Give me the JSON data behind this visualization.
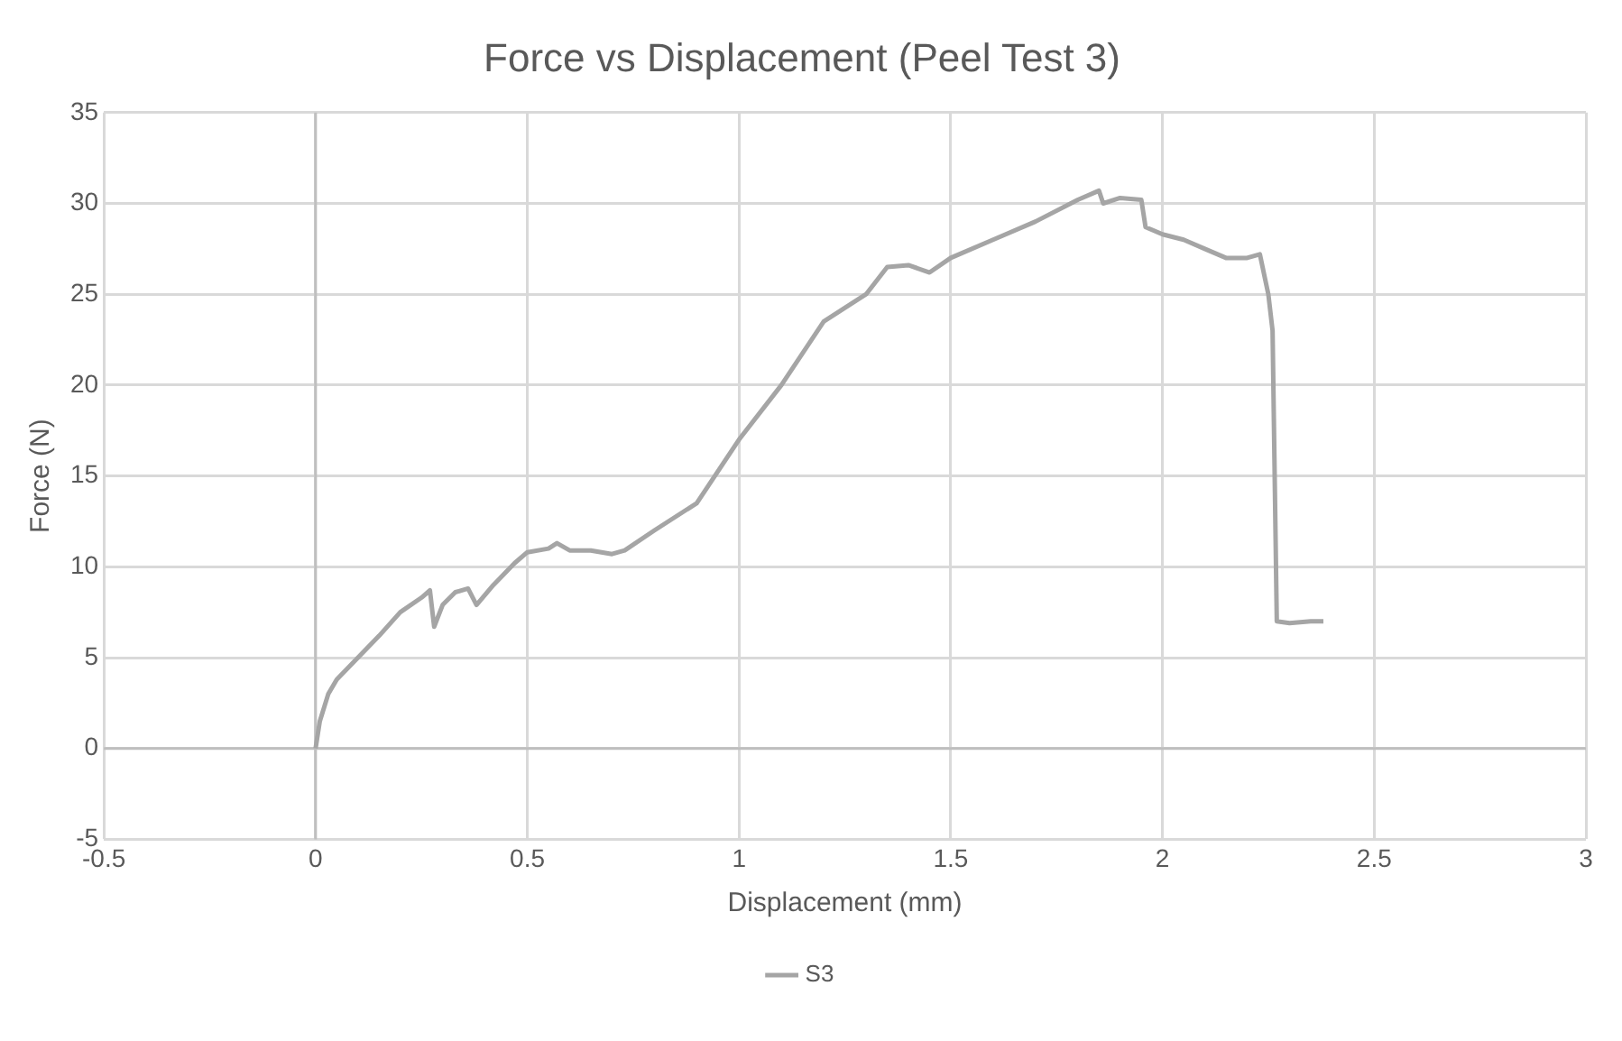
{
  "chart_data": {
    "type": "line",
    "title": "Force vs Displacement (Peel Test 3)",
    "xlabel": "Displacement (mm)",
    "ylabel": "Force (N)",
    "xlim": [
      -0.5,
      3
    ],
    "xticks": [
      -0.5,
      0,
      0.5,
      1,
      1.5,
      2,
      2.5,
      3
    ],
    "ylim": [
      -5,
      35
    ],
    "yticks": [
      -5,
      0,
      5,
      10,
      15,
      20,
      25,
      30,
      35
    ],
    "grid": true,
    "legend": "bottom",
    "marker": "none",
    "line_style": "solid",
    "series": [
      {
        "name": "S3",
        "color": "#a5a5a5",
        "x": [
          0,
          0.01,
          0.03,
          0.05,
          0.1,
          0.15,
          0.2,
          0.25,
          0.27,
          0.28,
          0.3,
          0.33,
          0.36,
          0.38,
          0.42,
          0.47,
          0.5,
          0.55,
          0.57,
          0.6,
          0.65,
          0.7,
          0.73,
          0.8,
          0.9,
          1.0,
          1.1,
          1.2,
          1.3,
          1.35,
          1.4,
          1.45,
          1.5,
          1.6,
          1.7,
          1.8,
          1.85,
          1.86,
          1.9,
          1.95,
          1.96,
          2.0,
          2.05,
          2.1,
          2.15,
          2.2,
          2.23,
          2.25,
          2.26,
          2.27,
          2.3,
          2.35,
          2.38
        ],
        "values": [
          0,
          1.5,
          3,
          3.8,
          5,
          6.2,
          7.5,
          8.3,
          8.7,
          6.7,
          7.9,
          8.6,
          8.8,
          7.9,
          9,
          10.2,
          10.8,
          11,
          11.3,
          10.9,
          10.9,
          10.7,
          10.9,
          12,
          13.5,
          17,
          20,
          23.5,
          25,
          26.5,
          26.6,
          26.2,
          27,
          28,
          29,
          30.2,
          30.7,
          30,
          30.3,
          30.2,
          28.7,
          28.3,
          28,
          27.5,
          27,
          27,
          27.2,
          25,
          23,
          7,
          6.9,
          7,
          7
        ]
      }
    ]
  }
}
